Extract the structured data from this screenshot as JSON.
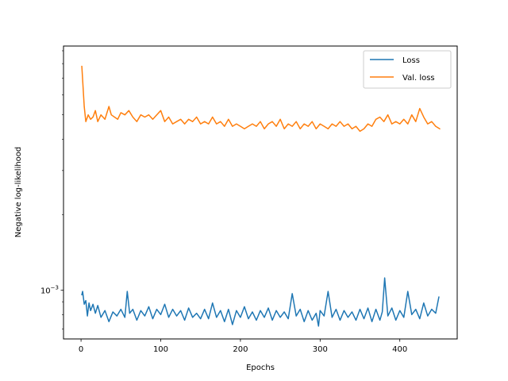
{
  "chart_data": {
    "type": "line",
    "xlabel": "Epochs",
    "ylabel": "Negative log-likelihood",
    "yscale": "log",
    "xlim": [
      -22,
      472
    ],
    "ylim": [
      0.00064,
      0.0094
    ],
    "x_ticks": [
      0,
      100,
      200,
      300,
      400
    ],
    "y_major_ticks": [
      {
        "value": 0.001,
        "mantissa": "10",
        "exponent": "−3"
      }
    ],
    "y_minor_ticks": [
      0.0007,
      0.0008,
      0.0009,
      0.002,
      0.003,
      0.004,
      0.005,
      0.006,
      0.007,
      0.008,
      0.009
    ],
    "grid": false,
    "legend": {
      "position": "top-right",
      "entries": [
        "Loss",
        "Val. loss"
      ]
    },
    "series": [
      {
        "name": "Loss",
        "color": "#1f77b4",
        "x": [
          1,
          2,
          4,
          6,
          8,
          10,
          12,
          15,
          18,
          21,
          25,
          30,
          35,
          40,
          45,
          50,
          55,
          58,
          61,
          65,
          70,
          75,
          80,
          85,
          90,
          95,
          100,
          105,
          110,
          115,
          120,
          125,
          130,
          135,
          140,
          145,
          150,
          155,
          160,
          165,
          170,
          175,
          180,
          185,
          190,
          195,
          200,
          205,
          210,
          215,
          220,
          225,
          230,
          235,
          240,
          245,
          250,
          255,
          260,
          265,
          270,
          275,
          280,
          285,
          290,
          295,
          298,
          300,
          305,
          310,
          315,
          320,
          325,
          330,
          335,
          340,
          345,
          350,
          355,
          360,
          365,
          370,
          375,
          378,
          381,
          385,
          390,
          395,
          400,
          405,
          410,
          415,
          420,
          425,
          430,
          435,
          440,
          445,
          449
        ],
        "values": [
          0.00096,
          0.00099,
          0.00088,
          0.00091,
          0.00079,
          0.00089,
          0.00083,
          0.00088,
          0.00081,
          0.00087,
          0.00078,
          0.00083,
          0.00075,
          0.00082,
          0.00079,
          0.00084,
          0.00078,
          0.00099,
          0.00081,
          0.00084,
          0.00076,
          0.00083,
          0.00079,
          0.00086,
          0.00077,
          0.00084,
          0.0008,
          0.00088,
          0.00078,
          0.00084,
          0.00079,
          0.00083,
          0.00076,
          0.00085,
          0.00078,
          0.00081,
          0.00077,
          0.00084,
          0.00077,
          0.00089,
          0.00078,
          0.00083,
          0.00075,
          0.00084,
          0.00073,
          0.00083,
          0.00078,
          0.00086,
          0.00077,
          0.00082,
          0.00076,
          0.00083,
          0.00078,
          0.00085,
          0.00076,
          0.00083,
          0.00078,
          0.00082,
          0.00077,
          0.00097,
          0.00079,
          0.00084,
          0.00075,
          0.00083,
          0.00076,
          0.00081,
          0.00072,
          0.00083,
          0.00079,
          0.00099,
          0.00078,
          0.00084,
          0.00076,
          0.00083,
          0.00078,
          0.00082,
          0.00076,
          0.00084,
          0.00077,
          0.00085,
          0.00075,
          0.00084,
          0.00076,
          0.00082,
          0.00112,
          0.00079,
          0.00085,
          0.00076,
          0.00083,
          0.00078,
          0.00099,
          0.0008,
          0.00084,
          0.00077,
          0.00089,
          0.00079,
          0.00084,
          0.00081,
          0.00094
        ]
      },
      {
        "name": "Val. loss",
        "color": "#ff7f0e",
        "x": [
          1,
          2,
          4,
          6,
          9,
          12,
          15,
          18,
          21,
          25,
          30,
          35,
          38,
          42,
          46,
          50,
          55,
          60,
          65,
          70,
          75,
          80,
          85,
          90,
          95,
          100,
          105,
          110,
          115,
          120,
          125,
          130,
          135,
          140,
          145,
          150,
          155,
          160,
          165,
          170,
          175,
          180,
          185,
          190,
          195,
          200,
          205,
          210,
          215,
          220,
          225,
          230,
          235,
          240,
          245,
          250,
          255,
          260,
          265,
          270,
          275,
          280,
          285,
          290,
          295,
          300,
          305,
          310,
          315,
          320,
          325,
          330,
          335,
          340,
          345,
          350,
          355,
          360,
          365,
          370,
          375,
          380,
          385,
          390,
          395,
          400,
          405,
          410,
          415,
          420,
          425,
          430,
          435,
          440,
          445,
          450
        ],
        "values": [
          0.0078,
          0.0069,
          0.0054,
          0.0047,
          0.005,
          0.0048,
          0.0049,
          0.0052,
          0.0047,
          0.005,
          0.0048,
          0.0054,
          0.005,
          0.0049,
          0.0048,
          0.0051,
          0.005,
          0.0052,
          0.0049,
          0.0047,
          0.005,
          0.0049,
          0.005,
          0.0048,
          0.005,
          0.0052,
          0.0047,
          0.0049,
          0.0046,
          0.0047,
          0.0048,
          0.0046,
          0.0048,
          0.0047,
          0.0049,
          0.0046,
          0.0047,
          0.0046,
          0.0049,
          0.0046,
          0.0047,
          0.0045,
          0.0048,
          0.0045,
          0.0046,
          0.0045,
          0.0044,
          0.0045,
          0.0046,
          0.0045,
          0.0047,
          0.0044,
          0.0046,
          0.0047,
          0.0045,
          0.0048,
          0.0044,
          0.0046,
          0.0045,
          0.0047,
          0.0044,
          0.0046,
          0.0045,
          0.0047,
          0.0044,
          0.0046,
          0.0045,
          0.0044,
          0.0046,
          0.0045,
          0.0047,
          0.0045,
          0.0046,
          0.0044,
          0.0045,
          0.0043,
          0.0044,
          0.0046,
          0.0045,
          0.0048,
          0.0049,
          0.0047,
          0.005,
          0.0046,
          0.0047,
          0.0046,
          0.0048,
          0.0046,
          0.005,
          0.0047,
          0.0053,
          0.0049,
          0.0046,
          0.0047,
          0.0045,
          0.0044
        ]
      }
    ]
  }
}
